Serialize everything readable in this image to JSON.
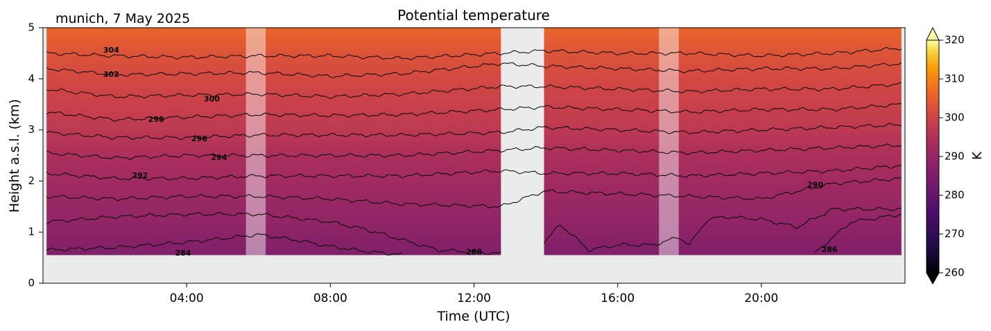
{
  "header": {
    "location_date": "munich, 7 May 2025"
  },
  "chart_data": {
    "type": "heatmap",
    "title": "Potential temperature",
    "xlabel": "Time (UTC)",
    "ylabel": "Height a.s.l. (km)",
    "colorbar_label": "K",
    "colormap": "inferno",
    "xlim": [
      0,
      24
    ],
    "ylim": [
      0,
      5
    ],
    "clim": [
      260,
      320
    ],
    "colorbar_extend": "both",
    "x_ticks": [
      {
        "value": 4,
        "label": "04:00"
      },
      {
        "value": 8,
        "label": "08:00"
      },
      {
        "value": 12,
        "label": "12:00"
      },
      {
        "value": 16,
        "label": "16:00"
      },
      {
        "value": 20,
        "label": "20:00"
      }
    ],
    "y_ticks": [
      {
        "value": 0,
        "label": "0"
      },
      {
        "value": 1,
        "label": "1"
      },
      {
        "value": 2,
        "label": "2"
      },
      {
        "value": 3,
        "label": "3"
      },
      {
        "value": 4,
        "label": "4"
      },
      {
        "value": 5,
        "label": "5"
      }
    ],
    "colorbar_ticks": [
      {
        "value": 260,
        "label": "260"
      },
      {
        "value": 270,
        "label": "270"
      },
      {
        "value": 280,
        "label": "280"
      },
      {
        "value": 290,
        "label": "290"
      },
      {
        "value": 300,
        "label": "300"
      },
      {
        "value": 310,
        "label": "310"
      },
      {
        "value": 320,
        "label": "320"
      }
    ],
    "data_segments": [
      {
        "t_start": 0.1,
        "t_end": 12.75,
        "z_min": 0.55,
        "z_max": 5.0
      },
      {
        "t_start": 13.95,
        "t_end": 23.9,
        "z_min": 0.55,
        "z_max": 5.0
      }
    ],
    "shaded_periods": [
      {
        "t_start": 5.65,
        "t_end": 6.2
      },
      {
        "t_start": 17.15,
        "t_end": 17.7
      }
    ],
    "theta_profile": [
      {
        "z": 0.55,
        "theta": 285.5
      },
      {
        "z": 1.0,
        "theta": 288
      },
      {
        "z": 1.5,
        "theta": 290
      },
      {
        "z": 2.0,
        "theta": 292
      },
      {
        "z": 2.5,
        "theta": 294
      },
      {
        "z": 3.0,
        "theta": 297
      },
      {
        "z": 3.5,
        "theta": 299
      },
      {
        "z": 4.0,
        "theta": 301
      },
      {
        "z": 4.5,
        "theta": 303
      },
      {
        "z": 5.0,
        "theta": 306
      }
    ],
    "contours": [
      {
        "level": 304,
        "heights": [
          [
            0.1,
            4.5
          ],
          [
            2,
            4.45
          ],
          [
            4,
            4.42
          ],
          [
            6,
            4.45
          ],
          [
            8,
            4.45
          ],
          [
            10,
            4.4
          ],
          [
            12.75,
            4.5
          ],
          [
            13.95,
            4.55
          ],
          [
            16,
            4.5
          ],
          [
            18,
            4.5
          ],
          [
            20,
            4.45
          ],
          [
            22,
            4.5
          ],
          [
            23.9,
            4.6
          ]
        ]
      },
      {
        "level": 302,
        "heights": [
          [
            0.1,
            4.2
          ],
          [
            2,
            4.08
          ],
          [
            4,
            4.1
          ],
          [
            6,
            4.12
          ],
          [
            8,
            4.05
          ],
          [
            10,
            4.1
          ],
          [
            12.75,
            4.3
          ],
          [
            13.95,
            4.25
          ],
          [
            16,
            4.2
          ],
          [
            18,
            4.15
          ],
          [
            20,
            4.2
          ],
          [
            22,
            4.2
          ],
          [
            23.9,
            4.3
          ]
        ]
      },
      {
        "level": 300,
        "heights": [
          [
            0.1,
            3.8
          ],
          [
            2,
            3.65
          ],
          [
            4,
            3.68
          ],
          [
            6,
            3.7
          ],
          [
            8,
            3.65
          ],
          [
            10,
            3.7
          ],
          [
            12.75,
            3.85
          ],
          [
            13.95,
            3.85
          ],
          [
            16,
            3.8
          ],
          [
            18,
            3.75
          ],
          [
            20,
            3.8
          ],
          [
            22,
            3.8
          ],
          [
            23.9,
            3.9
          ]
        ]
      },
      {
        "level": 298,
        "heights": [
          [
            0.1,
            3.35
          ],
          [
            2,
            3.2
          ],
          [
            4,
            3.25
          ],
          [
            6,
            3.3
          ],
          [
            8,
            3.28
          ],
          [
            10,
            3.3
          ],
          [
            12.75,
            3.4
          ],
          [
            13.95,
            3.45
          ],
          [
            16,
            3.4
          ],
          [
            18,
            3.35
          ],
          [
            20,
            3.4
          ],
          [
            22,
            3.4
          ],
          [
            23.9,
            3.5
          ]
        ]
      },
      {
        "level": 296,
        "heights": [
          [
            0.1,
            2.95
          ],
          [
            2,
            2.85
          ],
          [
            4,
            2.85
          ],
          [
            6,
            2.9
          ],
          [
            8,
            2.9
          ],
          [
            10,
            2.9
          ],
          [
            12.75,
            2.95
          ],
          [
            13.95,
            3.05
          ],
          [
            16,
            3.0
          ],
          [
            18,
            2.95
          ],
          [
            20,
            3.0
          ],
          [
            22,
            3.05
          ],
          [
            23.9,
            3.1
          ]
        ]
      },
      {
        "level": 294,
        "heights": [
          [
            0.1,
            2.55
          ],
          [
            2,
            2.45
          ],
          [
            4,
            2.5
          ],
          [
            6,
            2.5
          ],
          [
            8,
            2.5
          ],
          [
            10,
            2.5
          ],
          [
            12.75,
            2.6
          ],
          [
            13.95,
            2.65
          ],
          [
            16,
            2.6
          ],
          [
            18,
            2.55
          ],
          [
            20,
            2.6
          ],
          [
            22,
            2.65
          ],
          [
            23.9,
            2.7
          ]
        ]
      },
      {
        "level": 292,
        "heights": [
          [
            0.1,
            2.15
          ],
          [
            2,
            2.05
          ],
          [
            4,
            2.05
          ],
          [
            6,
            2.1
          ],
          [
            8,
            2.1
          ],
          [
            10,
            2.1
          ],
          [
            12.75,
            2.2
          ],
          [
            13.95,
            2.15
          ],
          [
            16,
            2.15
          ],
          [
            18,
            2.1
          ],
          [
            20,
            2.15
          ],
          [
            22,
            2.2
          ],
          [
            23.9,
            2.3
          ]
        ]
      },
      {
        "level": 290,
        "heights": [
          [
            0.1,
            1.7
          ],
          [
            2,
            1.65
          ],
          [
            4,
            1.7
          ],
          [
            6,
            1.7
          ],
          [
            8,
            1.65
          ],
          [
            10,
            1.55
          ],
          [
            12.75,
            1.5
          ],
          [
            13.95,
            1.8
          ],
          [
            16,
            1.75
          ],
          [
            18,
            1.7
          ],
          [
            20,
            1.65
          ],
          [
            21,
            1.8
          ],
          [
            22,
            1.95
          ],
          [
            23.9,
            2.05
          ]
        ]
      },
      {
        "level": 288,
        "heights": [
          [
            0.1,
            1.2
          ],
          [
            2,
            1.3
          ],
          [
            4,
            1.35
          ],
          [
            6,
            1.35
          ],
          [
            8,
            1.2
          ],
          [
            9,
            1.05
          ],
          [
            10,
            0.85
          ],
          [
            11,
            0.65
          ],
          [
            12.75,
            0.58
          ]
        ]
      },
      {
        "level": 286,
        "heights": [
          [
            0.1,
            0.65
          ],
          [
            2,
            0.7
          ],
          [
            4,
            0.8
          ],
          [
            6,
            0.95
          ],
          [
            7,
            0.85
          ],
          [
            8,
            0.72
          ],
          [
            9,
            0.62
          ],
          [
            10,
            0.56
          ]
        ]
      },
      {
        "level": 286,
        "heights": [
          [
            21.5,
            0.6
          ],
          [
            22,
            0.9
          ],
          [
            22.5,
            1.2
          ],
          [
            23,
            1.25
          ],
          [
            23.9,
            1.35
          ]
        ]
      },
      {
        "level": 290,
        "heights": [
          [
            13.95,
            0.8
          ],
          [
            14.4,
            1.15
          ],
          [
            14.8,
            0.9
          ],
          [
            15.2,
            0.65
          ],
          [
            16,
            0.75
          ],
          [
            17,
            0.75
          ],
          [
            17.7,
            0.9
          ],
          [
            18,
            0.75
          ],
          [
            18.5,
            1.25
          ],
          [
            19,
            1.3
          ],
          [
            20,
            1.25
          ],
          [
            21,
            1.1
          ],
          [
            22,
            1.45
          ],
          [
            23.9,
            1.45
          ]
        ]
      }
    ],
    "contour_labels": [
      {
        "level": 304,
        "label": "304",
        "t": 1.9,
        "z": 4.55
      },
      {
        "level": 302,
        "label": "302",
        "t": 1.9,
        "z": 4.08
      },
      {
        "level": 300,
        "label": "300",
        "t": 4.7,
        "z": 3.6
      },
      {
        "level": 298,
        "label": "298",
        "t": 3.15,
        "z": 3.2
      },
      {
        "level": 296,
        "label": "296",
        "t": 4.35,
        "z": 2.82
      },
      {
        "level": 294,
        "label": "294",
        "t": 4.9,
        "z": 2.45
      },
      {
        "level": 292,
        "label": "292",
        "t": 2.7,
        "z": 2.1
      },
      {
        "level": 284,
        "label": "284",
        "t": 3.9,
        "z": 0.58
      },
      {
        "level": 288,
        "label": "288",
        "t": 12.0,
        "z": 0.6
      },
      {
        "level": 290,
        "label": "290",
        "t": 21.5,
        "z": 1.92
      },
      {
        "level": 286,
        "label": "286",
        "t": 21.9,
        "z": 0.65
      }
    ]
  }
}
